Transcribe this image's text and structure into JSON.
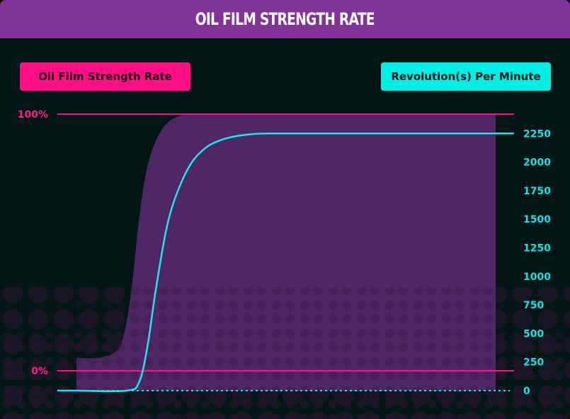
{
  "title": "OIL FILM STRENGTH RATE",
  "legend": {
    "left_label": "Oil Film Strength Rate",
    "right_label": "Revolution(s) Per Minute"
  },
  "colors": {
    "background": "#021616",
    "title_bar": "#813398",
    "pink": "#ff0f86",
    "cyan": "#00efe4",
    "area": "#4f2767"
  },
  "chart_data": {
    "type": "line",
    "left_axis": {
      "ticks": [
        "100%",
        "0%"
      ],
      "ylim": [
        0,
        100
      ]
    },
    "right_axis": {
      "ticks": [
        "2250",
        "2000",
        "1750",
        "1500",
        "1250",
        "1000",
        "750",
        "500",
        "250",
        "0"
      ],
      "ylim": [
        0,
        2400
      ]
    },
    "grid": false,
    "series": [
      {
        "name": "Oil Film Strength Rate",
        "axis": "left",
        "type": "area",
        "x": [
          0,
          5,
          9,
          11,
          13,
          15,
          17,
          20,
          24,
          30,
          40,
          60,
          80,
          100
        ],
        "values": [
          5,
          5,
          7,
          12,
          30,
          60,
          80,
          93,
          99,
          100,
          100,
          100,
          100,
          100
        ]
      },
      {
        "name": "Revolution(s) Per Minute",
        "axis": "right",
        "type": "line",
        "x": [
          0,
          12,
          15,
          17,
          19,
          22,
          26,
          30,
          35,
          42,
          50,
          60,
          100
        ],
        "values": [
          0,
          0,
          80,
          400,
          900,
          1500,
          1900,
          2100,
          2200,
          2245,
          2250,
          2250,
          2250
        ]
      }
    ]
  }
}
